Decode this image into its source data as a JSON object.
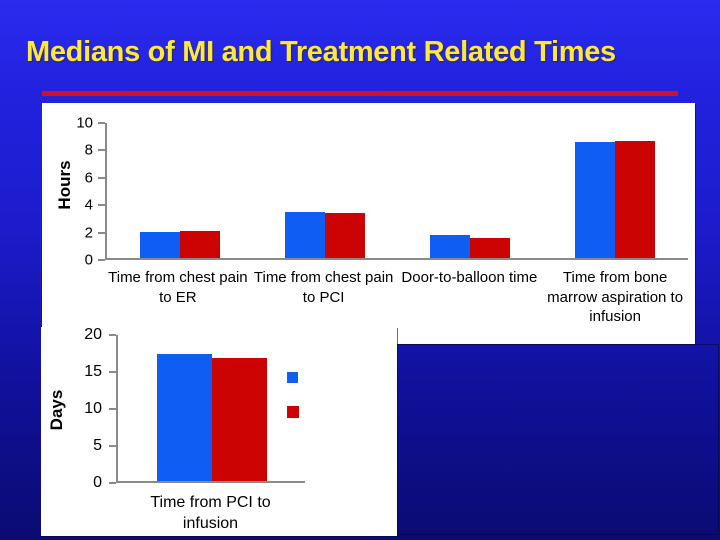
{
  "slide": {
    "title": "Medians of MI and Treatment Related Times",
    "title_color": "#FDE93B",
    "rule_color": "#D50F26",
    "background_top_color": "#2B2BEF",
    "background_bottom_color": "#0B0B72",
    "panel_color": "#FFFFFF"
  },
  "chart_data": [
    {
      "type": "bar",
      "title": "",
      "ylabel": "Hours",
      "xlabel": "",
      "ylim": [
        0,
        10
      ],
      "yticks": [
        0,
        2,
        4,
        6,
        8,
        10
      ],
      "grid": false,
      "legend": "none",
      "axis_color": "#8a8a8a",
      "categories": [
        "Time from chest pain to ER",
        "Time from chest pain to PCI",
        "Door-to-balloon time",
        "Time from bone marrow aspiration to infusion"
      ],
      "series": [
        {
          "name": "",
          "color": "#0F5DF2",
          "values": [
            1.9,
            3.4,
            1.7,
            8.6
          ]
        },
        {
          "name": "",
          "color": "#CB0303",
          "values": [
            2.0,
            3.3,
            1.5,
            8.7
          ]
        }
      ]
    },
    {
      "type": "bar",
      "title": "",
      "ylabel": "Days",
      "xlabel": "",
      "ylim": [
        0,
        20
      ],
      "yticks": [
        0,
        5,
        10,
        15,
        20
      ],
      "grid": false,
      "legend": "right-markers-only",
      "legend_labels": [
        "",
        ""
      ],
      "axis_color": "#8a8a8a",
      "categories": [
        "Time from PCI to infusion"
      ],
      "series": [
        {
          "name": "",
          "color": "#0F5DF2",
          "values": [
            17.4
          ]
        },
        {
          "name": "",
          "color": "#CB0303",
          "values": [
            16.9
          ]
        }
      ]
    }
  ]
}
